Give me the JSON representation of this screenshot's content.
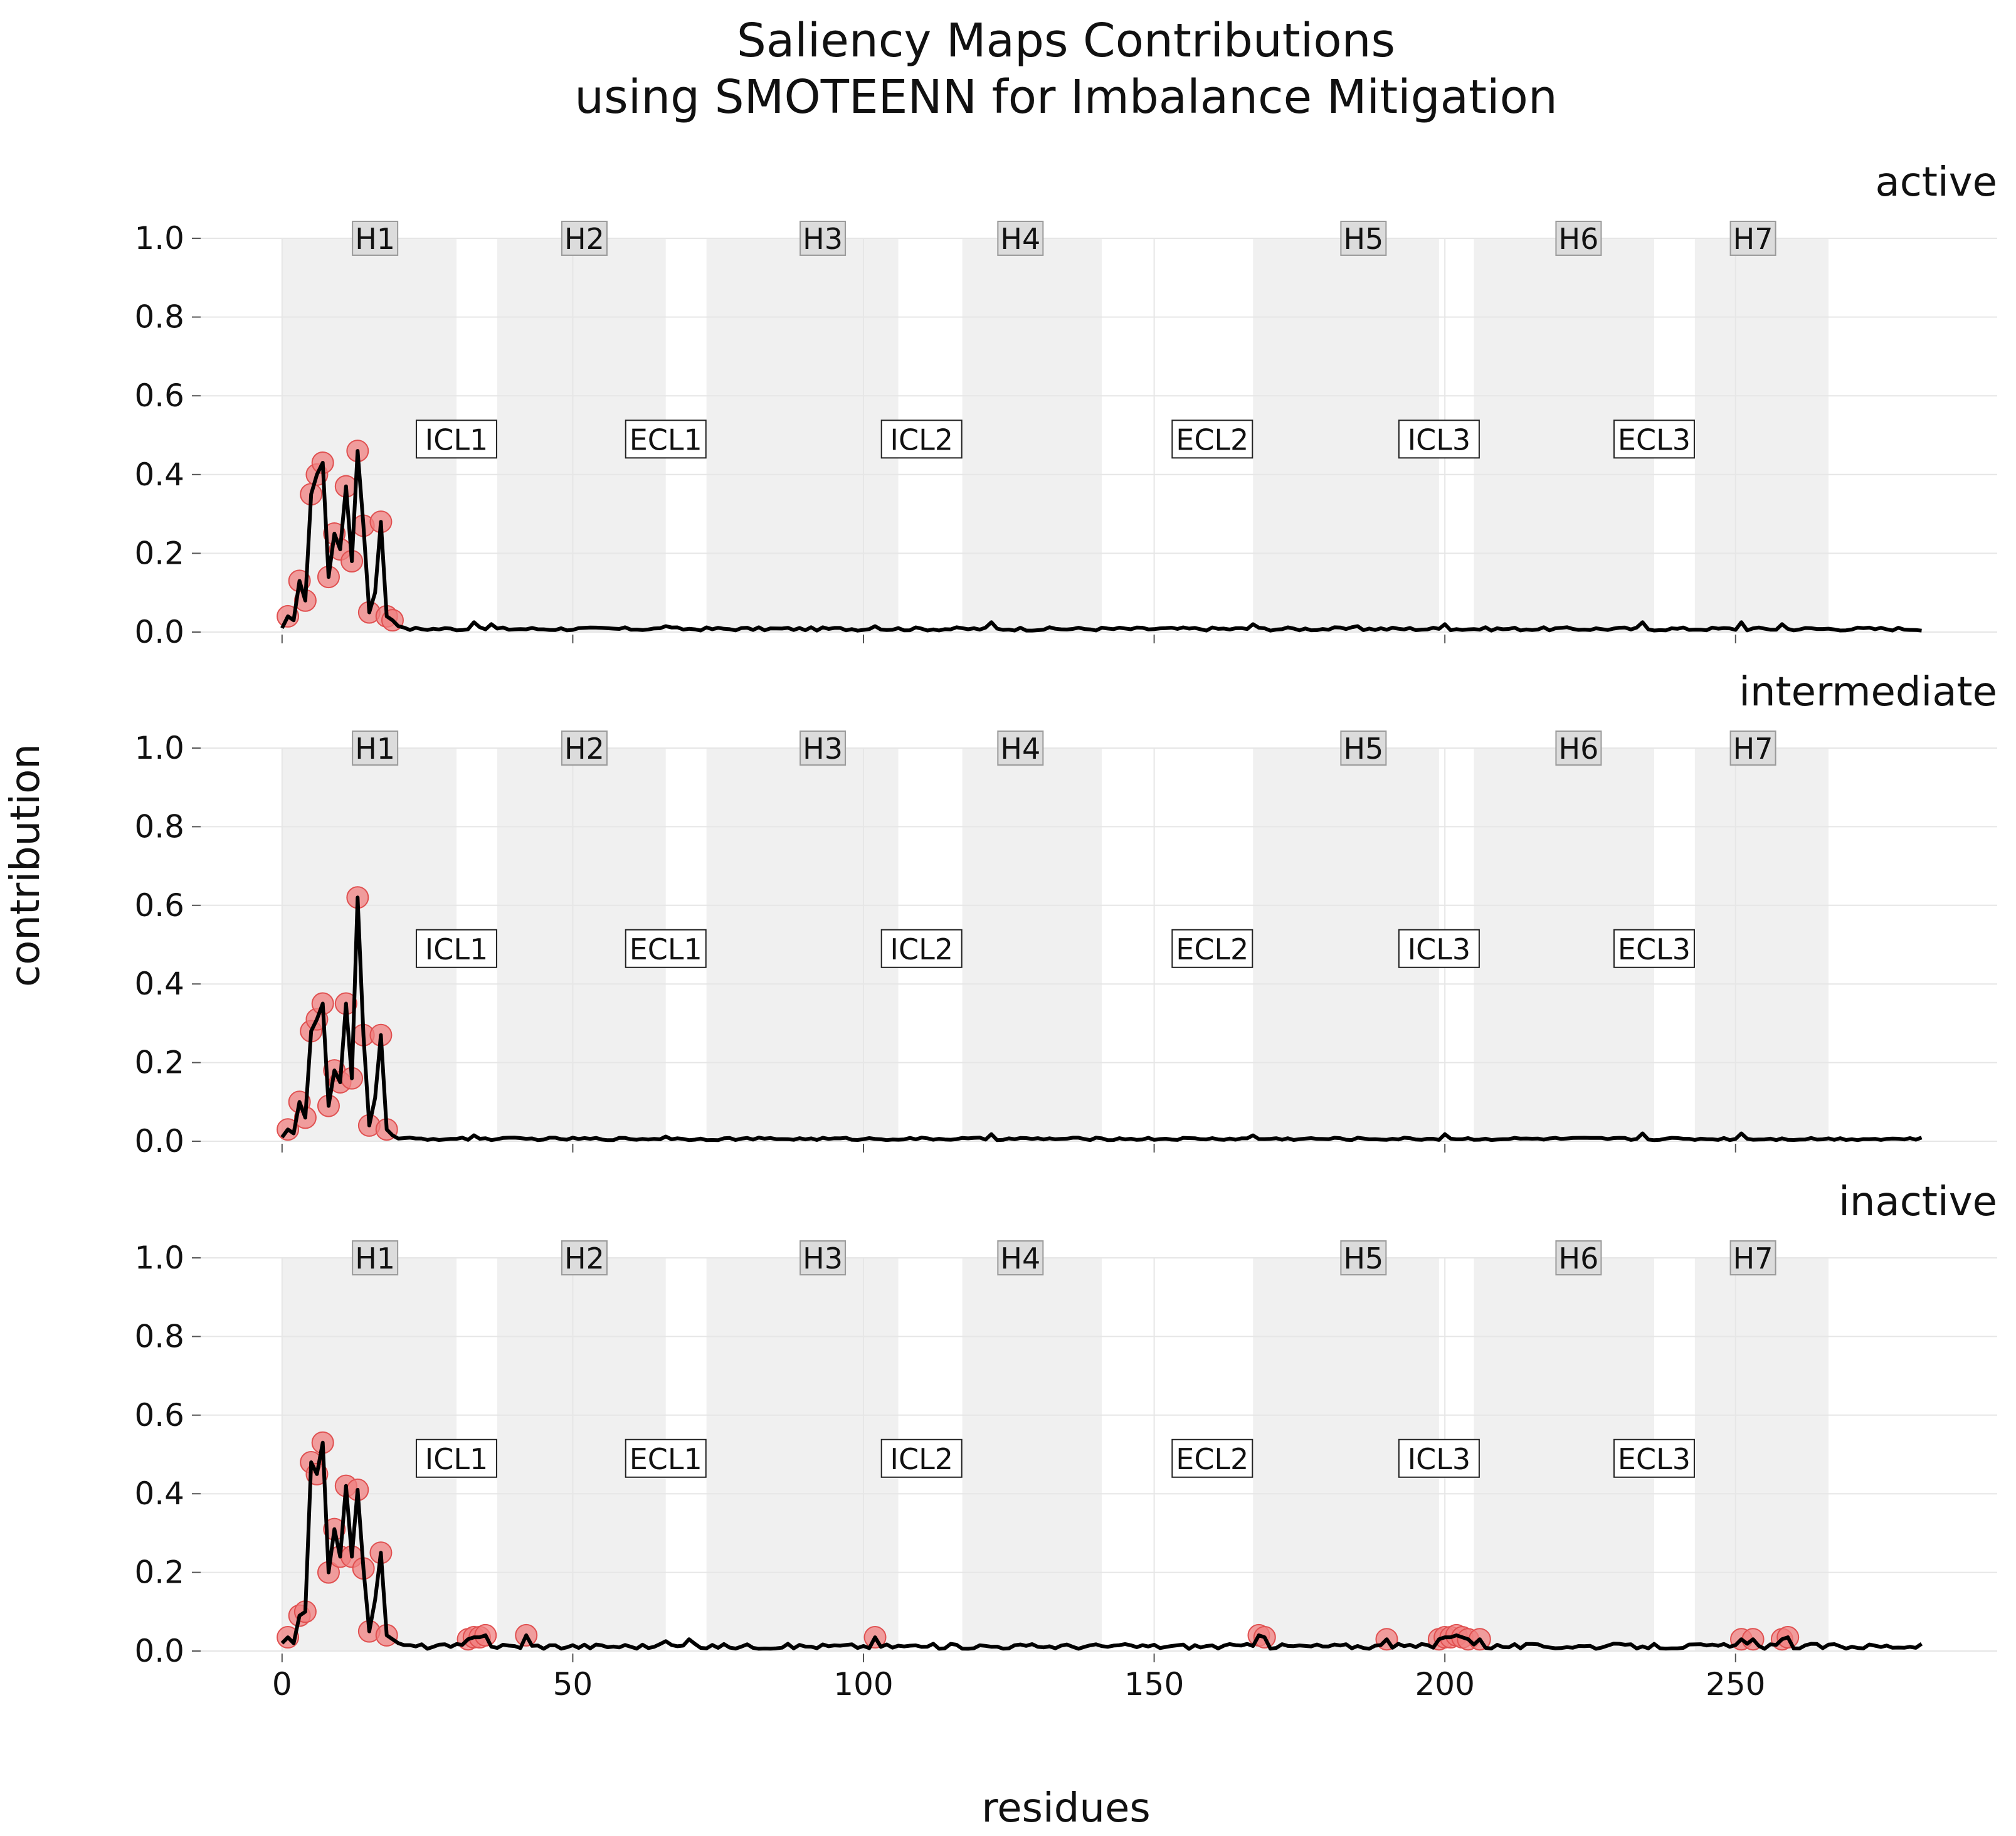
{
  "chart_data": {
    "type": "line",
    "title": "Saliency Maps Contributions",
    "subtitle": "using SMOTEENN for Imbalance Mitigation",
    "xlabel": "residues",
    "ylabel": "contribution",
    "xlim": [
      -14,
      295
    ],
    "ylim": [
      0,
      1.0
    ],
    "xticks": [
      0,
      50,
      100,
      150,
      200,
      250
    ],
    "yticks": [
      0.0,
      0.2,
      0.4,
      0.6,
      0.8,
      1.0
    ],
    "xtick_labels": [
      "0",
      "50",
      "100",
      "150",
      "200",
      "250"
    ],
    "ytick_labels": [
      "0.0",
      "0.2",
      "0.4",
      "0.6",
      "0.8",
      "1.0"
    ],
    "grid": true,
    "n_residues": 283,
    "helices": [
      {
        "name": "H1",
        "start": 0,
        "end": 30
      },
      {
        "name": "H2",
        "start": 37,
        "end": 66
      },
      {
        "name": "H3",
        "start": 73,
        "end": 106
      },
      {
        "name": "H4",
        "start": 117,
        "end": 141
      },
      {
        "name": "H5",
        "start": 167,
        "end": 199
      },
      {
        "name": "H6",
        "start": 205,
        "end": 236
      },
      {
        "name": "H7",
        "start": 243,
        "end": 266
      }
    ],
    "helix_label_x": [
      16,
      52,
      93,
      127,
      186,
      223,
      253
    ],
    "loops": [
      {
        "name": "ICL1",
        "x": 30
      },
      {
        "name": "ECL1",
        "x": 66
      },
      {
        "name": "ICL2",
        "x": 110
      },
      {
        "name": "ECL2",
        "x": 160
      },
      {
        "name": "ICL3",
        "x": 199
      },
      {
        "name": "ECL3",
        "x": 236
      }
    ],
    "helix_label_y": 1.0,
    "loop_label_y": 0.49,
    "panels": [
      {
        "name": "active",
        "peaks": [
          [
            0,
            0.01
          ],
          [
            1,
            0.04
          ],
          [
            2,
            0.03
          ],
          [
            3,
            0.13
          ],
          [
            4,
            0.08
          ],
          [
            5,
            0.35
          ],
          [
            6,
            0.4
          ],
          [
            7,
            0.43
          ],
          [
            8,
            0.14
          ],
          [
            9,
            0.25
          ],
          [
            10,
            0.21
          ],
          [
            11,
            0.37
          ],
          [
            12,
            0.18
          ],
          [
            13,
            0.46
          ],
          [
            14,
            0.27
          ],
          [
            15,
            0.05
          ],
          [
            16,
            0.1
          ],
          [
            17,
            0.28
          ],
          [
            18,
            0.04
          ],
          [
            19,
            0.03
          ],
          [
            20,
            0.015
          ]
        ],
        "bumps": [
          [
            33,
            0.025
          ],
          [
            36,
            0.02
          ],
          [
            66,
            0.015
          ],
          [
            102,
            0.015
          ],
          [
            122,
            0.025
          ],
          [
            167,
            0.02
          ],
          [
            185,
            0.015
          ],
          [
            200,
            0.02
          ],
          [
            234,
            0.025
          ],
          [
            251,
            0.025
          ],
          [
            258,
            0.02
          ]
        ],
        "baseline": 0.008,
        "markers": [
          [
            1,
            0.04
          ],
          [
            3,
            0.13
          ],
          [
            4,
            0.08
          ],
          [
            5,
            0.35
          ],
          [
            6,
            0.4
          ],
          [
            7,
            0.43
          ],
          [
            8,
            0.14
          ],
          [
            9,
            0.25
          ],
          [
            10,
            0.21
          ],
          [
            11,
            0.37
          ],
          [
            12,
            0.18
          ],
          [
            13,
            0.46
          ],
          [
            14,
            0.27
          ],
          [
            15,
            0.05
          ],
          [
            17,
            0.28
          ],
          [
            18,
            0.04
          ],
          [
            19,
            0.03
          ]
        ]
      },
      {
        "name": "intermediate",
        "peaks": [
          [
            0,
            0.01
          ],
          [
            1,
            0.03
          ],
          [
            2,
            0.02
          ],
          [
            3,
            0.1
          ],
          [
            4,
            0.06
          ],
          [
            5,
            0.28
          ],
          [
            6,
            0.31
          ],
          [
            7,
            0.35
          ],
          [
            8,
            0.09
          ],
          [
            9,
            0.18
          ],
          [
            10,
            0.15
          ],
          [
            11,
            0.35
          ],
          [
            12,
            0.16
          ],
          [
            13,
            0.62
          ],
          [
            14,
            0.27
          ],
          [
            15,
            0.04
          ],
          [
            16,
            0.11
          ],
          [
            17,
            0.27
          ],
          [
            18,
            0.03
          ],
          [
            19,
            0.015
          ]
        ],
        "bumps": [
          [
            33,
            0.015
          ],
          [
            66,
            0.012
          ],
          [
            122,
            0.018
          ],
          [
            167,
            0.015
          ],
          [
            200,
            0.018
          ],
          [
            234,
            0.02
          ],
          [
            251,
            0.02
          ]
        ],
        "baseline": 0.006,
        "markers": [
          [
            1,
            0.03
          ],
          [
            3,
            0.1
          ],
          [
            4,
            0.06
          ],
          [
            5,
            0.28
          ],
          [
            6,
            0.31
          ],
          [
            7,
            0.35
          ],
          [
            8,
            0.09
          ],
          [
            9,
            0.18
          ],
          [
            10,
            0.15
          ],
          [
            11,
            0.35
          ],
          [
            12,
            0.16
          ],
          [
            13,
            0.62
          ],
          [
            14,
            0.27
          ],
          [
            15,
            0.04
          ],
          [
            17,
            0.27
          ],
          [
            18,
            0.03
          ]
        ]
      },
      {
        "name": "inactive",
        "peaks": [
          [
            0,
            0.02
          ],
          [
            1,
            0.035
          ],
          [
            2,
            0.02
          ],
          [
            3,
            0.09
          ],
          [
            4,
            0.1
          ],
          [
            5,
            0.48
          ],
          [
            6,
            0.45
          ],
          [
            7,
            0.53
          ],
          [
            8,
            0.2
          ],
          [
            9,
            0.31
          ],
          [
            10,
            0.24
          ],
          [
            11,
            0.42
          ],
          [
            12,
            0.24
          ],
          [
            13,
            0.41
          ],
          [
            14,
            0.21
          ],
          [
            15,
            0.05
          ],
          [
            16,
            0.13
          ],
          [
            17,
            0.25
          ],
          [
            18,
            0.04
          ],
          [
            19,
            0.03
          ],
          [
            20,
            0.02
          ]
        ],
        "bumps": [
          [
            32,
            0.03
          ],
          [
            33,
            0.035
          ],
          [
            34,
            0.035
          ],
          [
            35,
            0.04
          ],
          [
            42,
            0.04
          ],
          [
            66,
            0.025
          ],
          [
            70,
            0.03
          ],
          [
            102,
            0.035
          ],
          [
            168,
            0.04
          ],
          [
            169,
            0.035
          ],
          [
            190,
            0.03
          ],
          [
            199,
            0.03
          ],
          [
            200,
            0.035
          ],
          [
            201,
            0.035
          ],
          [
            202,
            0.04
          ],
          [
            203,
            0.035
          ],
          [
            204,
            0.03
          ],
          [
            206,
            0.03
          ],
          [
            251,
            0.03
          ],
          [
            253,
            0.03
          ],
          [
            258,
            0.03
          ],
          [
            259,
            0.035
          ]
        ],
        "baseline": 0.012,
        "markers": [
          [
            1,
            0.035
          ],
          [
            3,
            0.09
          ],
          [
            4,
            0.1
          ],
          [
            5,
            0.48
          ],
          [
            6,
            0.45
          ],
          [
            7,
            0.53
          ],
          [
            8,
            0.2
          ],
          [
            9,
            0.31
          ],
          [
            10,
            0.24
          ],
          [
            11,
            0.42
          ],
          [
            12,
            0.24
          ],
          [
            13,
            0.41
          ],
          [
            14,
            0.21
          ],
          [
            15,
            0.05
          ],
          [
            17,
            0.25
          ],
          [
            18,
            0.04
          ],
          [
            32,
            0.03
          ],
          [
            33,
            0.035
          ],
          [
            34,
            0.035
          ],
          [
            35,
            0.04
          ],
          [
            42,
            0.04
          ],
          [
            102,
            0.035
          ],
          [
            168,
            0.04
          ],
          [
            169,
            0.035
          ],
          [
            190,
            0.03
          ],
          [
            199,
            0.03
          ],
          [
            200,
            0.035
          ],
          [
            201,
            0.035
          ],
          [
            202,
            0.04
          ],
          [
            203,
            0.035
          ],
          [
            204,
            0.03
          ],
          [
            206,
            0.03
          ],
          [
            251,
            0.03
          ],
          [
            253,
            0.03
          ],
          [
            258,
            0.03
          ],
          [
            259,
            0.035
          ]
        ]
      }
    ]
  },
  "colors": {
    "helix_band": "#f0f0f0",
    "label_box_helix": "#dcdcdc",
    "line": "#000000",
    "marker": "#f08080",
    "marker_edge": "#e05050",
    "grid": "#e6e6e6"
  }
}
